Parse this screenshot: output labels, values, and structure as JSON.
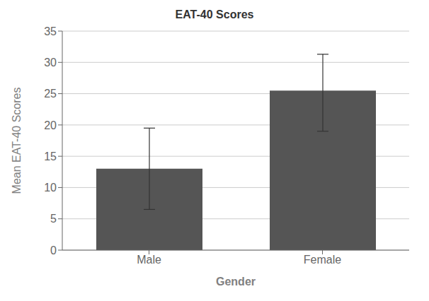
{
  "chart_data": {
    "type": "bar",
    "title": "EAT-40 Scores",
    "xlabel": "Gender",
    "ylabel": "Mean EAT-40 Scores",
    "categories": [
      "Male",
      "Female"
    ],
    "values": [
      13.0,
      25.5
    ],
    "errors_up": [
      6.5,
      5.8
    ],
    "errors_down": [
      6.5,
      6.5
    ],
    "color": "#555555",
    "ylim": [
      0,
      35
    ],
    "yticks": [
      0,
      5,
      10,
      15,
      20,
      25,
      30,
      35
    ],
    "grid": true
  }
}
